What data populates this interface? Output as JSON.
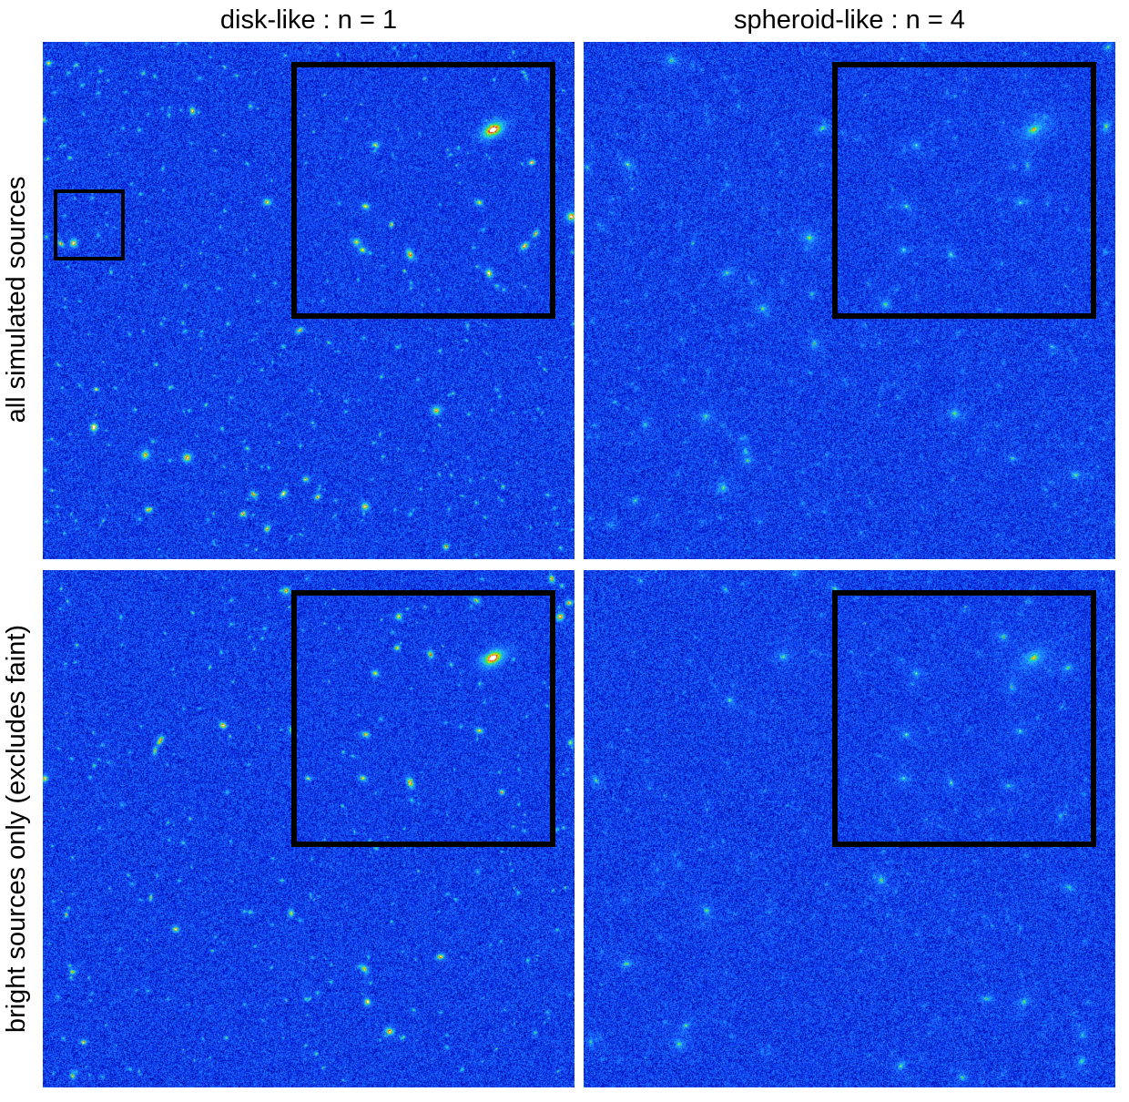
{
  "columns": [
    {
      "label": "disk-like : n = 1"
    },
    {
      "label": "spheroid-like : n = 4"
    }
  ],
  "rows": [
    {
      "label": "all simulated sources"
    },
    {
      "label": "bright sources only (excludes faint)"
    }
  ],
  "colormap": [
    "#00005a",
    "#0010c8",
    "#1a5cff",
    "#1e9bff",
    "#22d6d6",
    "#3cdc3c",
    "#d8e81c",
    "#ffa000",
    "#e81010",
    "#ffffff"
  ]
}
